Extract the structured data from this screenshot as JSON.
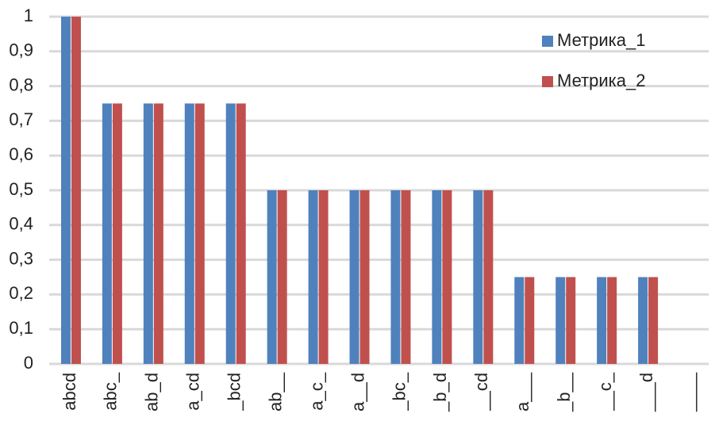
{
  "chart_data": {
    "type": "bar",
    "categories": [
      "abcd",
      "abc_",
      "ab_d",
      "a_cd",
      "_bcd",
      "ab__",
      "a_c_",
      "a__d",
      "_bc_",
      "_b_d",
      "__cd",
      "a___",
      "_b__",
      "__c_",
      "___d",
      "____"
    ],
    "series": [
      {
        "name": "Метрика_1",
        "color": "#4f81bd",
        "values": [
          1,
          0.75,
          0.75,
          0.75,
          0.75,
          0.5,
          0.5,
          0.5,
          0.5,
          0.5,
          0.5,
          0.25,
          0.25,
          0.25,
          0.25,
          0
        ]
      },
      {
        "name": "Метрика_2",
        "color": "#c0504d",
        "values": [
          1,
          0.75,
          0.75,
          0.75,
          0.75,
          0.5,
          0.5,
          0.5,
          0.5,
          0.5,
          0.5,
          0.25,
          0.25,
          0.25,
          0.25,
          0
        ]
      }
    ],
    "ylim": [
      0,
      1
    ],
    "yticks": [
      0,
      {
        "value": 0.1,
        "label": "0,1"
      },
      {
        "value": 0.2,
        "label": "0,2"
      },
      {
        "value": 0.3,
        "label": "0,3"
      },
      {
        "value": 0.4,
        "label": "0,4"
      },
      {
        "value": 0.5,
        "label": "0,5"
      },
      {
        "value": 0.6,
        "label": "0,6"
      },
      {
        "value": 0.7,
        "label": "0,7"
      },
      {
        "value": 0.8,
        "label": "0,8"
      },
      {
        "value": 0.9,
        "label": "0,9"
      },
      1
    ],
    "grid": true,
    "legend": "top-right"
  }
}
